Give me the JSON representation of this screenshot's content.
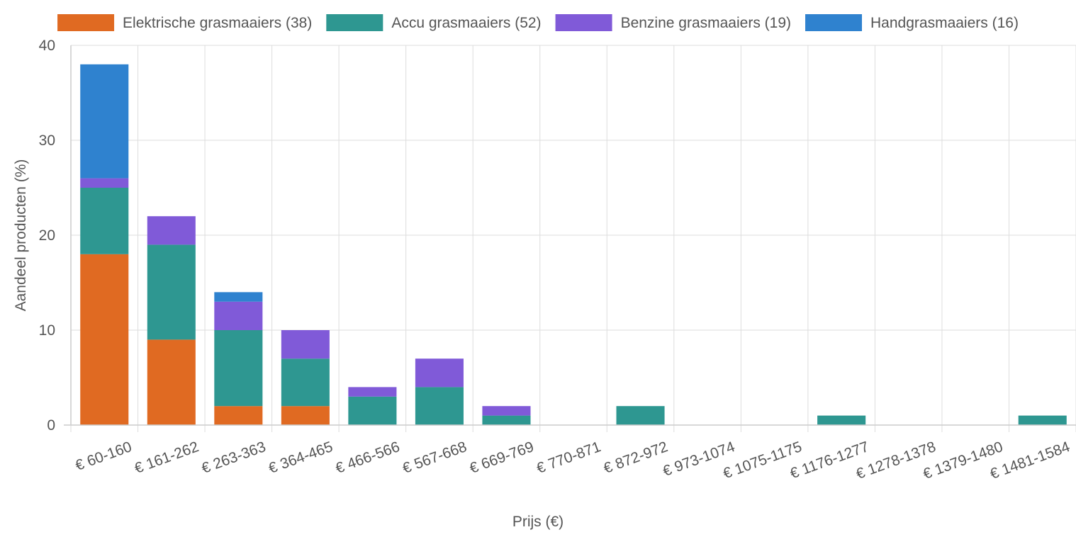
{
  "chart_data": {
    "type": "bar",
    "stacked": true,
    "categories": [
      "€ 60-160",
      "€ 161-262",
      "€ 263-363",
      "€ 364-465",
      "€ 466-566",
      "€ 567-668",
      "€ 669-769",
      "€ 770-871",
      "€ 872-972",
      "€ 973-1074",
      "€ 1075-1175",
      "€ 1176-1277",
      "€ 1278-1378",
      "€ 1379-1480",
      "€ 1481-1584"
    ],
    "series": [
      {
        "name": "Elektrische grasmaaiers (38)",
        "color": "#e06a22",
        "values": [
          18,
          9,
          2,
          2,
          0,
          0,
          0,
          0,
          0,
          0,
          0,
          0,
          0,
          0,
          0
        ]
      },
      {
        "name": "Accu grasmaaiers (52)",
        "color": "#2e9791",
        "values": [
          7,
          10,
          8,
          5,
          3,
          4,
          1,
          0,
          2,
          0,
          0,
          1,
          0,
          0,
          1
        ]
      },
      {
        "name": "Benzine grasmaaiers (19)",
        "color": "#805ad8",
        "values": [
          1,
          3,
          3,
          3,
          1,
          3,
          1,
          0,
          0,
          0,
          0,
          0,
          0,
          0,
          0
        ]
      },
      {
        "name": "Handgrasmaaiers (16)",
        "color": "#2f82cf",
        "values": [
          12,
          0,
          1,
          0,
          0,
          0,
          0,
          0,
          0,
          0,
          0,
          0,
          0,
          0,
          0
        ]
      }
    ],
    "xlabel": "Prijs (€)",
    "ylabel": "Aandeel producten (%)",
    "ylim": [
      0,
      40
    ],
    "yticks": [
      0,
      10,
      20,
      30,
      40
    ],
    "grid": true,
    "legend_position": "top"
  }
}
